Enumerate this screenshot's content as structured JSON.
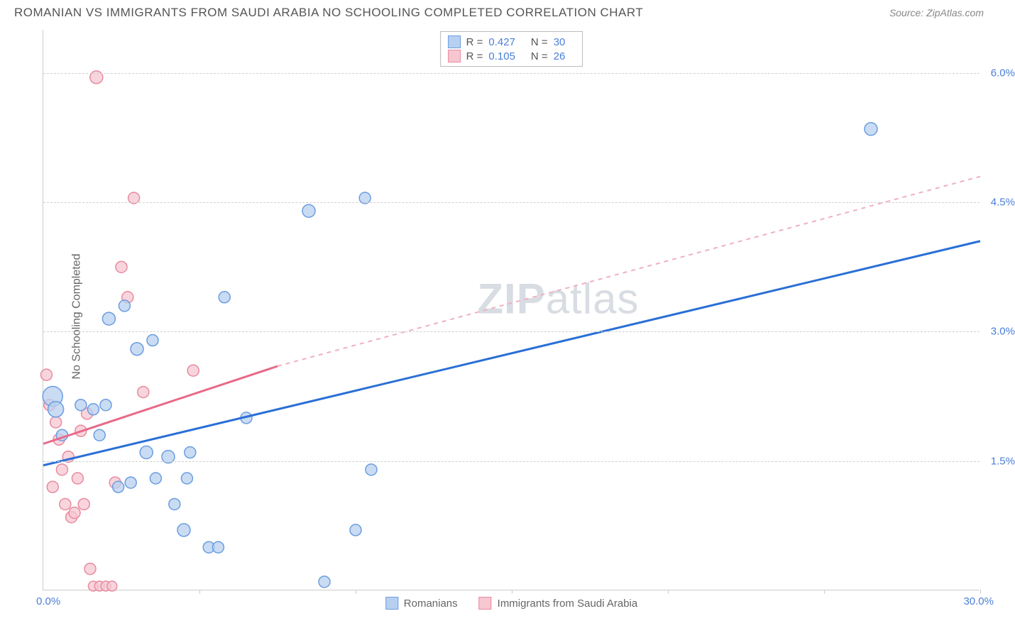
{
  "title": "ROMANIAN VS IMMIGRANTS FROM SAUDI ARABIA NO SCHOOLING COMPLETED CORRELATION CHART",
  "source": "Source: ZipAtlas.com",
  "y_axis_label": "No Schooling Completed",
  "watermark_a": "ZIP",
  "watermark_b": "atlas",
  "chart": {
    "type": "scatter",
    "xlim": [
      0,
      30
    ],
    "ylim": [
      0,
      6.5
    ],
    "x_min_label": "0.0%",
    "x_max_label": "30.0%",
    "y_ticks": [
      1.5,
      3.0,
      4.5,
      6.0
    ],
    "y_tick_labels": [
      "1.5%",
      "3.0%",
      "4.5%",
      "6.0%"
    ],
    "x_ticks": [
      5,
      10,
      15,
      20,
      25,
      30
    ],
    "background_color": "#ffffff",
    "grid_color": "#d0d0d0"
  },
  "correlation_legend": [
    {
      "swatch_fill": "#b8d0ef",
      "swatch_border": "#6a9de0",
      "r_label": "R =",
      "r": "0.427",
      "n_label": "N =",
      "n": "30"
    },
    {
      "swatch_fill": "#f6c7d1",
      "swatch_border": "#e88aa0",
      "r_label": "R =",
      "r": "0.105",
      "n_label": "N =",
      "n": "26"
    }
  ],
  "series_legend": [
    {
      "label": "Romanians",
      "swatch_fill": "#b8d0ef",
      "swatch_border": "#6a9de0"
    },
    {
      "label": "Immigrants from Saudi Arabia",
      "swatch_fill": "#f6c7d1",
      "swatch_border": "#e88aa0"
    }
  ],
  "series": {
    "blue": {
      "fill": "#b8d0ef",
      "stroke": "#6a9de0",
      "opacity": 0.75,
      "points": [
        {
          "x": 0.3,
          "y": 2.25,
          "r": 14
        },
        {
          "x": 0.4,
          "y": 2.1,
          "r": 11
        },
        {
          "x": 0.6,
          "y": 1.8,
          "r": 8
        },
        {
          "x": 1.2,
          "y": 2.15,
          "r": 8
        },
        {
          "x": 1.6,
          "y": 2.1,
          "r": 8
        },
        {
          "x": 2.0,
          "y": 2.15,
          "r": 8
        },
        {
          "x": 1.8,
          "y": 1.8,
          "r": 8
        },
        {
          "x": 2.1,
          "y": 3.15,
          "r": 9
        },
        {
          "x": 2.6,
          "y": 3.3,
          "r": 8
        },
        {
          "x": 2.8,
          "y": 1.25,
          "r": 8
        },
        {
          "x": 3.0,
          "y": 2.8,
          "r": 9
        },
        {
          "x": 3.3,
          "y": 1.6,
          "r": 9
        },
        {
          "x": 3.5,
          "y": 2.9,
          "r": 8
        },
        {
          "x": 3.6,
          "y": 1.3,
          "r": 8
        },
        {
          "x": 4.0,
          "y": 1.55,
          "r": 9
        },
        {
          "x": 4.2,
          "y": 1.0,
          "r": 8
        },
        {
          "x": 4.5,
          "y": 0.7,
          "r": 9
        },
        {
          "x": 4.6,
          "y": 1.3,
          "r": 8
        },
        {
          "x": 4.7,
          "y": 1.6,
          "r": 8
        },
        {
          "x": 5.3,
          "y": 0.5,
          "r": 8
        },
        {
          "x": 5.6,
          "y": 0.5,
          "r": 8
        },
        {
          "x": 5.8,
          "y": 3.4,
          "r": 8
        },
        {
          "x": 6.5,
          "y": 2.0,
          "r": 8
        },
        {
          "x": 8.5,
          "y": 4.4,
          "r": 9
        },
        {
          "x": 9.0,
          "y": 0.1,
          "r": 8
        },
        {
          "x": 10.0,
          "y": 0.7,
          "r": 8
        },
        {
          "x": 10.5,
          "y": 1.4,
          "r": 8
        },
        {
          "x": 10.3,
          "y": 4.55,
          "r": 8
        },
        {
          "x": 26.5,
          "y": 5.35,
          "r": 9
        },
        {
          "x": 2.4,
          "y": 1.2,
          "r": 8
        }
      ],
      "trend": {
        "x1": 0,
        "y1": 1.45,
        "x2": 30,
        "y2": 4.05,
        "stroke": "#2a6fd6",
        "width": 3
      }
    },
    "pink": {
      "fill": "#f6c7d1",
      "stroke": "#e88aa0",
      "opacity": 0.75,
      "points": [
        {
          "x": 0.1,
          "y": 2.5,
          "r": 8
        },
        {
          "x": 0.2,
          "y": 2.15,
          "r": 8
        },
        {
          "x": 0.3,
          "y": 1.2,
          "r": 8
        },
        {
          "x": 0.5,
          "y": 1.75,
          "r": 8
        },
        {
          "x": 0.6,
          "y": 1.4,
          "r": 8
        },
        {
          "x": 0.7,
          "y": 1.0,
          "r": 8
        },
        {
          "x": 0.8,
          "y": 1.55,
          "r": 8
        },
        {
          "x": 0.9,
          "y": 0.85,
          "r": 8
        },
        {
          "x": 1.0,
          "y": 0.9,
          "r": 8
        },
        {
          "x": 1.1,
          "y": 1.3,
          "r": 8
        },
        {
          "x": 1.2,
          "y": 1.85,
          "r": 8
        },
        {
          "x": 1.3,
          "y": 1.0,
          "r": 8
        },
        {
          "x": 1.4,
          "y": 2.05,
          "r": 8
        },
        {
          "x": 1.5,
          "y": 0.25,
          "r": 8
        },
        {
          "x": 1.6,
          "y": 0.05,
          "r": 7
        },
        {
          "x": 1.8,
          "y": 0.05,
          "r": 7
        },
        {
          "x": 2.0,
          "y": 0.05,
          "r": 7
        },
        {
          "x": 2.2,
          "y": 0.05,
          "r": 7
        },
        {
          "x": 1.7,
          "y": 5.95,
          "r": 9
        },
        {
          "x": 2.3,
          "y": 1.25,
          "r": 8
        },
        {
          "x": 2.5,
          "y": 3.75,
          "r": 8
        },
        {
          "x": 2.7,
          "y": 3.4,
          "r": 8
        },
        {
          "x": 2.9,
          "y": 4.55,
          "r": 8
        },
        {
          "x": 3.2,
          "y": 2.3,
          "r": 8
        },
        {
          "x": 4.8,
          "y": 2.55,
          "r": 8
        },
        {
          "x": 0.4,
          "y": 1.95,
          "r": 8
        }
      ],
      "trend_solid": {
        "x1": 0,
        "y1": 1.7,
        "x2": 7.5,
        "y2": 2.6,
        "stroke": "#e86a8a",
        "width": 3
      },
      "trend_dash": {
        "x1": 7.5,
        "y1": 2.6,
        "x2": 30,
        "y2": 4.8,
        "stroke": "#efb0bf",
        "width": 2,
        "dash": "6,6"
      }
    }
  }
}
